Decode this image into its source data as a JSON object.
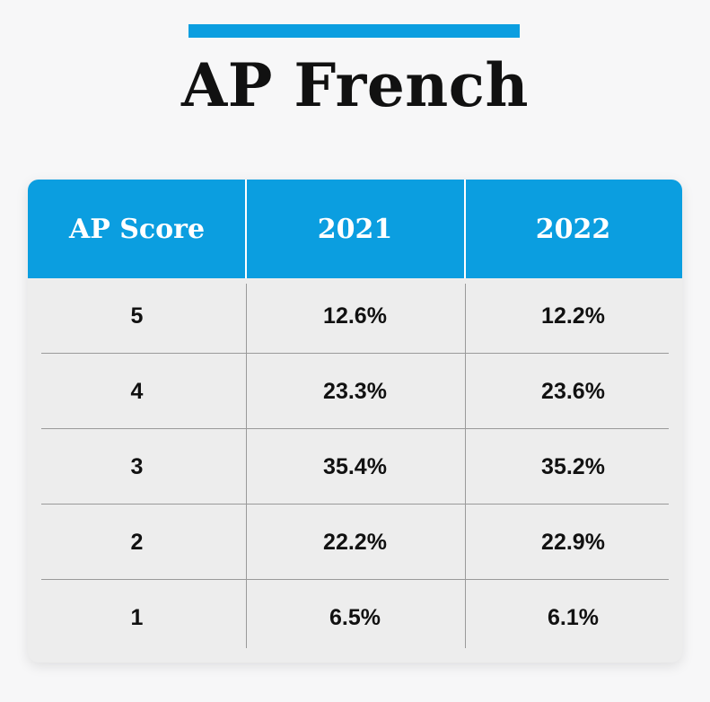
{
  "title": "AP French",
  "colors": {
    "accent": "#0b9ee0",
    "header_text": "#ffffff",
    "row_background": "#ededed",
    "text": "#111111"
  },
  "chart_data": {
    "type": "table",
    "title": "AP French",
    "columns": [
      "AP Score",
      "2021",
      "2022"
    ],
    "rows": [
      [
        "5",
        "12.6%",
        "12.2%"
      ],
      [
        "4",
        "23.3%",
        "23.6%"
      ],
      [
        "3",
        "35.4%",
        "35.2%"
      ],
      [
        "2",
        "22.2%",
        "22.9%"
      ],
      [
        "1",
        "6.5%",
        "6.1%"
      ]
    ]
  }
}
